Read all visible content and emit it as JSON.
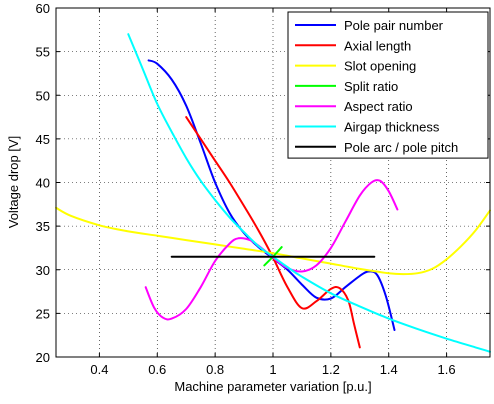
{
  "chart_data": {
    "type": "line",
    "title": "",
    "xlabel": "Machine parameter variation [p.u.]",
    "ylabel": "Voltage drop [V]",
    "xlim": [
      0.25,
      1.75
    ],
    "ylim": [
      20,
      60
    ],
    "xticks": [
      0.4,
      0.6,
      0.8,
      1,
      1.2,
      1.4,
      1.6
    ],
    "yticks": [
      20,
      25,
      30,
      35,
      40,
      45,
      50,
      55,
      60
    ],
    "grid": "dotted",
    "legend_position": "top-right",
    "series": [
      {
        "name": "Pole pair number",
        "color": "#0000ff",
        "points": [
          [
            0.57,
            54.0
          ],
          [
            0.6,
            53.6
          ],
          [
            0.65,
            51.8
          ],
          [
            0.7,
            48.8
          ],
          [
            0.75,
            44.5
          ],
          [
            0.8,
            40.0
          ],
          [
            0.85,
            36.5
          ],
          [
            0.9,
            34.2
          ],
          [
            0.95,
            32.6
          ],
          [
            1.0,
            31.3
          ],
          [
            1.05,
            30.0
          ],
          [
            1.1,
            28.3
          ],
          [
            1.15,
            26.8
          ],
          [
            1.2,
            26.7
          ],
          [
            1.25,
            28.0
          ],
          [
            1.3,
            29.3
          ],
          [
            1.33,
            29.8
          ],
          [
            1.36,
            29.4
          ],
          [
            1.39,
            27.0
          ],
          [
            1.42,
            23.1
          ]
        ]
      },
      {
        "name": "Axial length",
        "color": "#ff0000",
        "points": [
          [
            0.7,
            47.5
          ],
          [
            0.75,
            45.0
          ],
          [
            0.8,
            42.5
          ],
          [
            0.85,
            40.0
          ],
          [
            0.9,
            37.3
          ],
          [
            0.95,
            34.5
          ],
          [
            1.0,
            31.4
          ],
          [
            1.05,
            28.0
          ],
          [
            1.1,
            25.6
          ],
          [
            1.15,
            26.4
          ],
          [
            1.2,
            27.8
          ],
          [
            1.23,
            27.9
          ],
          [
            1.26,
            26.5
          ],
          [
            1.28,
            23.8
          ],
          [
            1.3,
            21.1
          ]
        ]
      },
      {
        "name": "Slot opening",
        "color": "#ffff00",
        "points": [
          [
            0.25,
            37.1
          ],
          [
            0.3,
            36.2
          ],
          [
            0.4,
            35.1
          ],
          [
            0.5,
            34.4
          ],
          [
            0.6,
            33.9
          ],
          [
            0.7,
            33.4
          ],
          [
            0.8,
            32.9
          ],
          [
            0.9,
            32.4
          ],
          [
            1.0,
            31.9
          ],
          [
            1.1,
            31.3
          ],
          [
            1.2,
            30.7
          ],
          [
            1.3,
            30.1
          ],
          [
            1.4,
            29.6
          ],
          [
            1.45,
            29.5
          ],
          [
            1.5,
            29.6
          ],
          [
            1.55,
            30.1
          ],
          [
            1.6,
            31.2
          ],
          [
            1.65,
            32.7
          ],
          [
            1.7,
            34.5
          ],
          [
            1.75,
            36.8
          ]
        ]
      },
      {
        "name": "Split ratio",
        "color": "#00ff00",
        "points": [
          [
            0.97,
            30.5
          ],
          [
            1.0,
            31.5
          ],
          [
            1.03,
            32.6
          ]
        ]
      },
      {
        "name": "Aspect ratio",
        "color": "#ff00ff",
        "points": [
          [
            0.56,
            28.0
          ],
          [
            0.59,
            25.6
          ],
          [
            0.62,
            24.5
          ],
          [
            0.65,
            24.4
          ],
          [
            0.7,
            25.5
          ],
          [
            0.75,
            28.0
          ],
          [
            0.8,
            31.0
          ],
          [
            0.85,
            33.0
          ],
          [
            0.88,
            33.6
          ],
          [
            0.92,
            33.4
          ],
          [
            0.96,
            32.5
          ],
          [
            1.0,
            31.4
          ],
          [
            1.05,
            30.2
          ],
          [
            1.1,
            29.8
          ],
          [
            1.15,
            30.5
          ],
          [
            1.2,
            32.5
          ],
          [
            1.25,
            35.5
          ],
          [
            1.3,
            38.5
          ],
          [
            1.34,
            40.0
          ],
          [
            1.37,
            40.2
          ],
          [
            1.4,
            39.0
          ],
          [
            1.43,
            36.9
          ]
        ]
      },
      {
        "name": "Airgap thickness",
        "color": "#00ffff",
        "points": [
          [
            0.5,
            57.0
          ],
          [
            0.55,
            53.0
          ],
          [
            0.6,
            49.0
          ],
          [
            0.65,
            45.8
          ],
          [
            0.7,
            42.8
          ],
          [
            0.75,
            40.2
          ],
          [
            0.8,
            38.0
          ],
          [
            0.85,
            36.0
          ],
          [
            0.9,
            34.3
          ],
          [
            0.95,
            32.7
          ],
          [
            1.0,
            31.5
          ],
          [
            1.05,
            30.3
          ],
          [
            1.1,
            29.2
          ],
          [
            1.2,
            27.3
          ],
          [
            1.3,
            25.8
          ],
          [
            1.4,
            24.4
          ],
          [
            1.5,
            23.2
          ],
          [
            1.6,
            22.1
          ],
          [
            1.7,
            21.1
          ],
          [
            1.75,
            20.6
          ]
        ]
      },
      {
        "name": "Pole arc / pole pitch",
        "color": "#000000",
        "points": [
          [
            0.65,
            31.5
          ],
          [
            1.35,
            31.5
          ]
        ]
      }
    ]
  }
}
